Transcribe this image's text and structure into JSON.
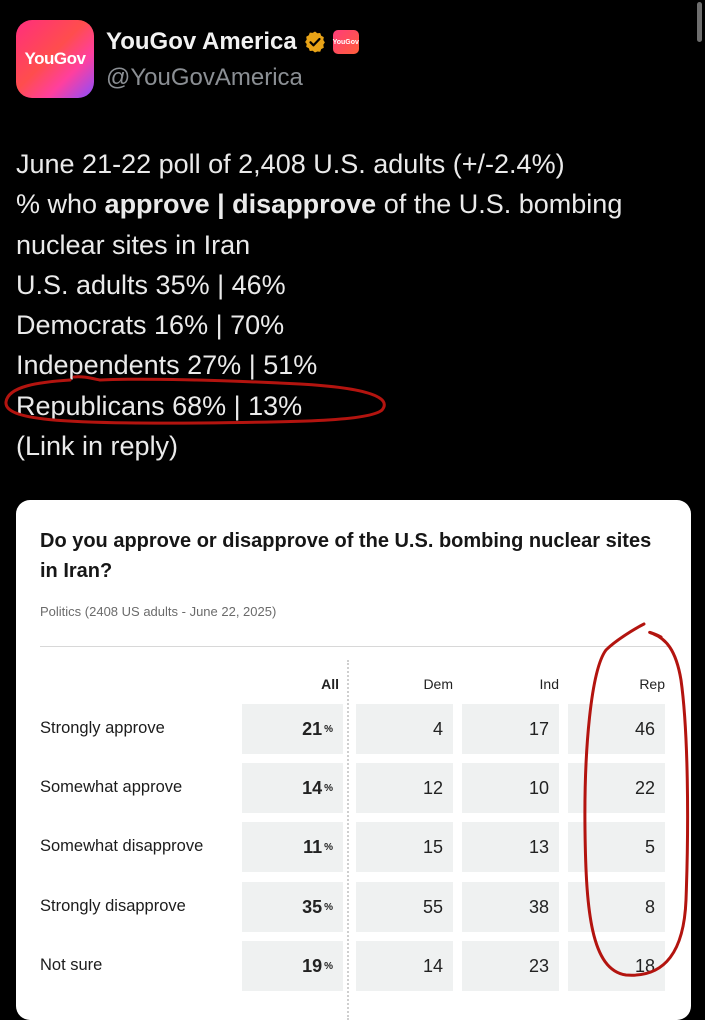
{
  "account": {
    "display_name": "YouGov America",
    "handle": "@YouGovAmerica",
    "avatar_text": "YouGov",
    "affiliate_badge_text": "YouGov"
  },
  "tweet": {
    "line1": "June 21-22 poll of 2,408 U.S. adults (+/-2.4%)",
    "line2_prefix": "% who ",
    "line2_approve": "approve",
    "line2_sep": " | ",
    "line2_disapprove": "disapprove",
    "line2_suffix": " of the U.S. bombing",
    "line3": "nuclear sites in Iran",
    "line4": "U.S. adults 35% | 46%",
    "line5": "Democrats 16% | 70%",
    "line6": "Independents 27% | 51%",
    "line7": "Republicans 68% | 13%",
    "line8": "(Link in reply)"
  },
  "card": {
    "title": "Do you approve or disapprove of the U.S. bombing nuclear sites in Iran?",
    "subtitle": "Politics (2408 US adults - June 22, 2025)",
    "columns": [
      "All",
      "Dem",
      "Ind",
      "Rep"
    ],
    "pct_symbol": "%",
    "rows": [
      {
        "label": "Strongly approve",
        "all": "21",
        "dem": "4",
        "ind": "17",
        "rep": "46"
      },
      {
        "label": "Somewhat approve",
        "all": "14",
        "dem": "12",
        "ind": "10",
        "rep": "22"
      },
      {
        "label": "Somewhat disapprove",
        "all": "11",
        "dem": "15",
        "ind": "13",
        "rep": "5"
      },
      {
        "label": "Strongly disapprove",
        "all": "35",
        "dem": "55",
        "ind": "38",
        "rep": "8"
      },
      {
        "label": "Not sure",
        "all": "19",
        "dem": "14",
        "ind": "23",
        "rep": "18"
      }
    ]
  },
  "colors": {
    "background": "#000000",
    "annotation_red": "#b3140f",
    "brand_gradient_start": "#ff2e7e",
    "brand_gradient_end": "#8a4dff",
    "verified_gold": "#e8a317"
  },
  "icons": {
    "verified": "verified-badge-icon",
    "affiliate": "yougov-affiliate-badge-icon"
  }
}
